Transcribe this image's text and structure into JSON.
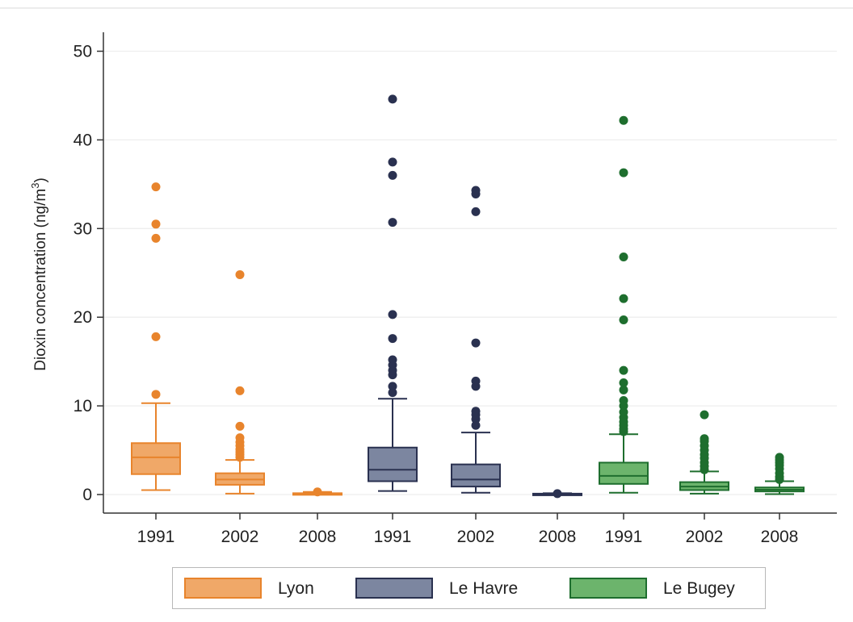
{
  "chart_data": {
    "type": "box",
    "title": "",
    "xlabel": "",
    "ylabel": "Dioxin concentration (ng/m",
    "ylabel_superscript": "3",
    "ylabel_suffix": ")",
    "ylim": [
      -2.5,
      50
    ],
    "yticks": [
      0,
      10,
      20,
      30,
      40,
      50
    ],
    "grid": true,
    "legend_position": "bottom",
    "categories": [
      "1991",
      "2002",
      "2008",
      "1991",
      "2002",
      "2008",
      "1991",
      "2002",
      "2008"
    ],
    "series": [
      {
        "name": "Lyon",
        "fill": "#f0a868",
        "edge": "#e8842c",
        "boxes": [
          {
            "year": "1991",
            "whisker_low": 0.5,
            "q1": 2.3,
            "median": 4.2,
            "q3": 5.8,
            "whisker_high": 10.3,
            "outliers": [
              11.3,
              17.8,
              28.9,
              30.5,
              34.7
            ]
          },
          {
            "year": "2002",
            "whisker_low": 0.1,
            "q1": 1.1,
            "median": 1.7,
            "q3": 2.4,
            "whisker_high": 3.9,
            "outliers": [
              4.2,
              4.5,
              4.8,
              5.1,
              5.5,
              5.9,
              6.4,
              7.7,
              11.7,
              24.8
            ]
          },
          {
            "year": "2008",
            "whisker_low": 0.0,
            "q1": 0.05,
            "median": 0.1,
            "q3": 0.15,
            "whisker_high": 0.3,
            "outliers": [
              0.3
            ]
          }
        ]
      },
      {
        "name": "Le Havre",
        "fill": "#7c86a0",
        "edge": "#2a3150",
        "boxes": [
          {
            "year": "1991",
            "whisker_low": 0.4,
            "q1": 1.5,
            "median": 2.8,
            "q3": 5.3,
            "whisker_high": 10.8,
            "outliers": [
              11.5,
              12.2,
              13.5,
              14.0,
              14.6,
              15.2,
              17.6,
              20.3,
              30.7,
              36.0,
              37.5,
              44.6
            ]
          },
          {
            "year": "2002",
            "whisker_low": 0.2,
            "q1": 0.9,
            "median": 1.7,
            "q3": 3.4,
            "whisker_high": 7.0,
            "outliers": [
              7.8,
              8.5,
              9.0,
              9.4,
              12.2,
              12.8,
              17.1,
              31.9,
              33.9,
              34.3
            ]
          },
          {
            "year": "2008",
            "whisker_low": 0.0,
            "q1": 0.03,
            "median": 0.06,
            "q3": 0.1,
            "whisker_high": 0.15,
            "outliers": [
              0.1
            ]
          }
        ]
      },
      {
        "name": "Le Bugey",
        "fill": "#6cb46c",
        "edge": "#1e6e2e",
        "boxes": [
          {
            "year": "1991",
            "whisker_low": 0.2,
            "q1": 1.2,
            "median": 2.1,
            "q3": 3.6,
            "whisker_high": 6.8,
            "outliers": [
              7.1,
              7.4,
              7.8,
              8.2,
              8.7,
              9.3,
              10.0,
              10.6,
              11.8,
              12.6,
              14.0,
              19.7,
              22.1,
              26.8,
              36.3,
              42.2
            ]
          },
          {
            "year": "2002",
            "whisker_low": 0.1,
            "q1": 0.5,
            "median": 0.9,
            "q3": 1.4,
            "whisker_high": 2.6,
            "outliers": [
              2.8,
              3.2,
              3.6,
              4.1,
              4.5,
              5.0,
              5.5,
              6.0,
              6.3,
              9.0
            ]
          },
          {
            "year": "2008",
            "whisker_low": 0.05,
            "q1": 0.35,
            "median": 0.55,
            "q3": 0.8,
            "whisker_high": 1.5,
            "outliers": [
              1.7,
              2.0,
              2.4,
              2.9,
              3.3,
              3.6,
              3.9,
              4.2
            ]
          }
        ]
      }
    ]
  }
}
